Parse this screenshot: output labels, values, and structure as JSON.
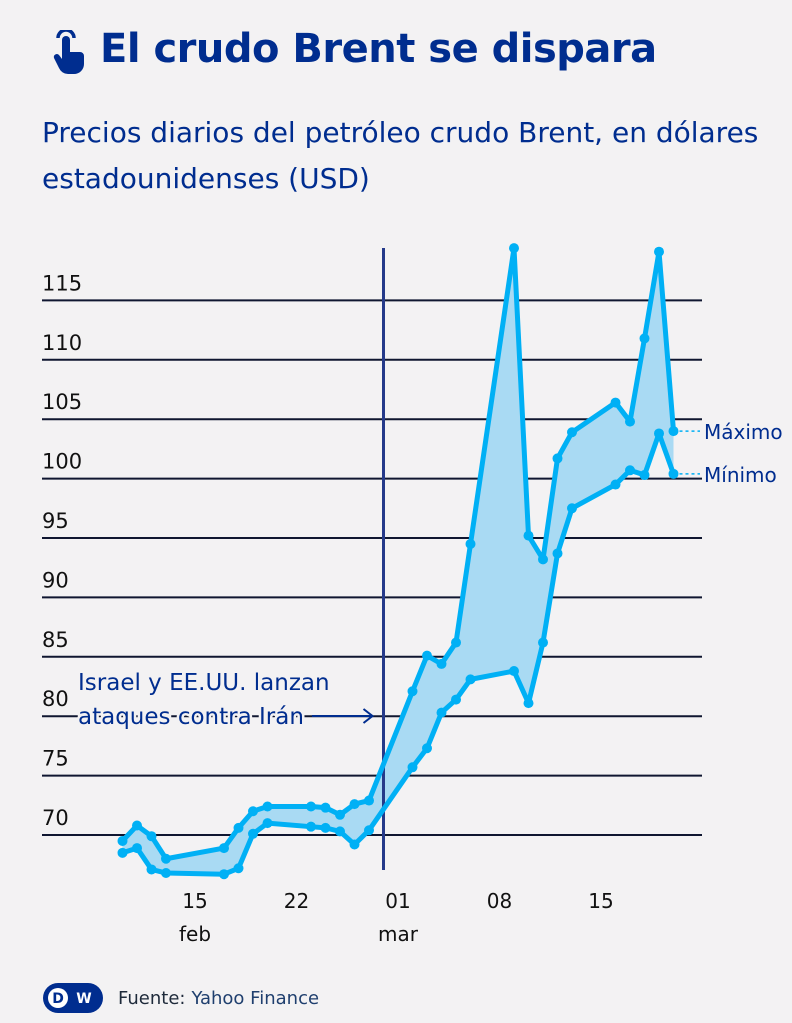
{
  "header": {
    "icon": "hand-pointer-icon",
    "title": "El crudo Brent se dispara",
    "subtitle": "Precios diarios del petróleo crudo Brent, en dólares estadounidenses (USD)"
  },
  "chart_data": {
    "type": "area",
    "title": "El crudo Brent se dispara",
    "subtitle": "Precios diarios del petróleo crudo Brent, en dólares estadounidenses (USD)",
    "xlabel": "",
    "ylabel": "",
    "ylim": [
      66,
      120
    ],
    "yticks": [
      70,
      75,
      80,
      85,
      90,
      95,
      100,
      105,
      110,
      115
    ],
    "grid": "horizontal",
    "xticks": [
      {
        "date": "02-15",
        "label": "15",
        "sublabel": "feb"
      },
      {
        "date": "02-22",
        "label": "22",
        "sublabel": ""
      },
      {
        "date": "03-01",
        "label": "01",
        "sublabel": "mar"
      },
      {
        "date": "03-08",
        "label": "08",
        "sublabel": ""
      },
      {
        "date": "03-15",
        "label": "15",
        "sublabel": ""
      }
    ],
    "x": [
      "02-10",
      "02-11",
      "02-12",
      "02-13",
      "02-17",
      "02-18",
      "02-19",
      "02-20",
      "02-23",
      "02-24",
      "02-25",
      "02-26",
      "02-27",
      "03-02",
      "03-03",
      "03-04",
      "03-05",
      "03-06",
      "03-09",
      "03-10",
      "03-11",
      "03-12",
      "03-13",
      "03-16",
      "03-17",
      "03-18",
      "03-19",
      "03-20"
    ],
    "series": [
      {
        "name": "Máximo",
        "values": [
          69.5,
          70.8,
          69.9,
          68.0,
          68.9,
          70.6,
          72.0,
          72.4,
          72.4,
          72.3,
          71.7,
          72.6,
          72.9,
          82.1,
          85.1,
          84.4,
          86.2,
          94.5,
          119.4,
          95.2,
          93.2,
          101.7,
          103.9,
          106.4,
          104.8,
          111.8,
          119.1,
          104.0
        ]
      },
      {
        "name": "Mínimo",
        "values": [
          68.5,
          68.9,
          67.1,
          66.8,
          66.7,
          67.2,
          70.1,
          71.0,
          70.7,
          70.6,
          70.3,
          69.2,
          70.4,
          75.7,
          77.3,
          80.3,
          81.4,
          83.1,
          83.8,
          81.1,
          86.2,
          93.7,
          97.5,
          99.5,
          100.7,
          100.3,
          103.8,
          100.4
        ]
      }
    ],
    "annotation": {
      "date": "02-28",
      "text_line1": "Israel y EE.UU. lanzan",
      "text_line2": "ataques contra Irán"
    },
    "colors": {
      "line": "#00b0f5",
      "fill": "#a9daf3",
      "grid": "#0f1630",
      "event_line": "#253a8a",
      "text": "#002d8f"
    }
  },
  "footer": {
    "logo": "DW",
    "source_label": "Fuente:",
    "source": "Yahoo Finance"
  }
}
